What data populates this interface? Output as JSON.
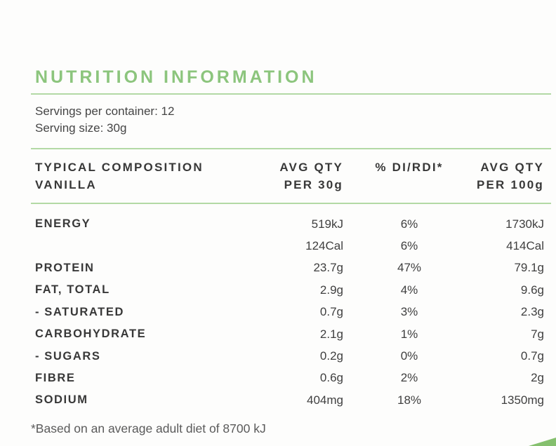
{
  "page": {
    "title": "NUTRITION INFORMATION",
    "servings_per_container": "Servings per container: 12",
    "serving_size": "Serving size: 30g",
    "footnote": "*Based on an average adult diet of 8700 kJ"
  },
  "table": {
    "header": {
      "col1_line1": "TYPICAL COMPOSITION",
      "col1_line2": "VANILLA",
      "col2_line1": "AVG QTY",
      "col2_line2": "PER 30g",
      "col3": "% DI/RDI*",
      "col4_line1": "AVG QTY",
      "col4_line2": "PER 100g"
    },
    "rows": [
      {
        "label": "ENERGY",
        "qty30": "519kJ",
        "di": "6%",
        "qty100": "1730kJ"
      },
      {
        "label": "",
        "qty30": "124Cal",
        "di": "6%",
        "qty100": "414Cal"
      },
      {
        "label": "PROTEIN",
        "qty30": "23.7g",
        "di": "47%",
        "qty100": "79.1g"
      },
      {
        "label": "FAT, TOTAL",
        "qty30": "2.9g",
        "di": "4%",
        "qty100": "9.6g"
      },
      {
        "label": "- SATURATED",
        "qty30": "0.7g",
        "di": "3%",
        "qty100": "2.3g"
      },
      {
        "label": "CARBOHYDRATE",
        "qty30": "2.1g",
        "di": "1%",
        "qty100": "7g"
      },
      {
        "label": "- SUGARS",
        "qty30": "0.2g",
        "di": "0%",
        "qty100": "0.7g"
      },
      {
        "label": "FIBRE",
        "qty30": "0.6g",
        "di": "2%",
        "qty100": "2g"
      },
      {
        "label": "SODIUM",
        "qty30": "404mg",
        "di": "18%",
        "qty100": "1350mg"
      }
    ]
  },
  "colors": {
    "accent_green": "#8cc57d",
    "rule_green": "#b3d9a5",
    "triangle_green": "#85c06e",
    "text_dark": "#383838",
    "text_body": "#454545",
    "text_footnote": "#5a5a5a"
  }
}
